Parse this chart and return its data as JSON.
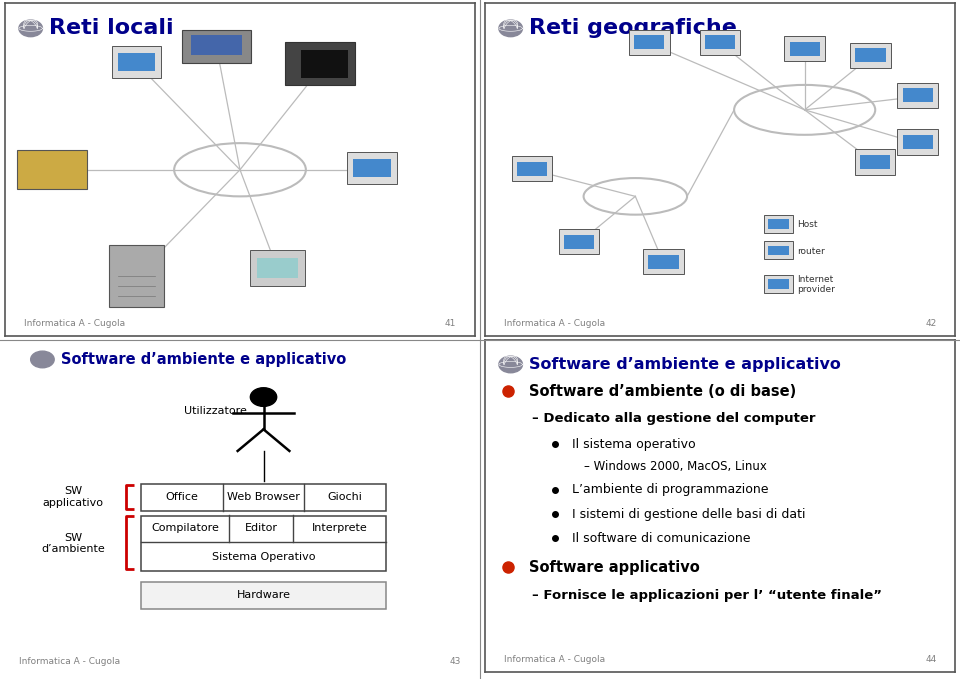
{
  "bg_color": "#ffffff",
  "title_color": "#00008B",
  "footer_color": "#808080",
  "red_bracket_color": "#cc0000",
  "slide1_title": "Reti locali",
  "slide2_title": "Reti geografiche",
  "slide3_title": "Software d’ambiente e applicativo",
  "slide4_title": "Software d’ambiente e applicativo",
  "slide1_footer": "Informatica A - Cugola",
  "slide1_page": "41",
  "slide2_footer": "Informatica A - Cugola",
  "slide2_page": "42",
  "slide3_footer": "Informatica A - Cugola",
  "slide3_page": "43",
  "slide4_footer": "Informatica A - Cugola",
  "slide4_page": "44",
  "slide4_bullet1": "Software d’ambiente (o di base)",
  "slide4_sub1": "Dedicato alla gestione del computer",
  "slide4_sub2": "Il sistema operativo",
  "slide4_sub3": "Windows 2000, MacOS, Linux",
  "slide4_sub4": "L’ambiente di programmazione",
  "slide4_sub5": "I sistemi di gestione delle basi di dati",
  "slide4_sub6": "Il software di comunicazione",
  "slide4_bullet2": "Software applicativo",
  "slide4_sub7": "Fornisce le applicazioni per l’ “utente finale”",
  "sw_applicativo": "SW\napplicativo",
  "sw_ambiente": "SW\nd’ambiente",
  "utilizzatore": "Utilizzatore",
  "office": "Office",
  "web_browser": "Web Browser",
  "giochi": "Giochi",
  "compilatore": "Compilatore",
  "editor": "Editor",
  "interprete": "Interprete",
  "sistema_operativo": "Sistema Operativo",
  "hardware": "Hardware",
  "host_label": "Host",
  "router_label": "router",
  "provider_label": "Internet\nprovider"
}
